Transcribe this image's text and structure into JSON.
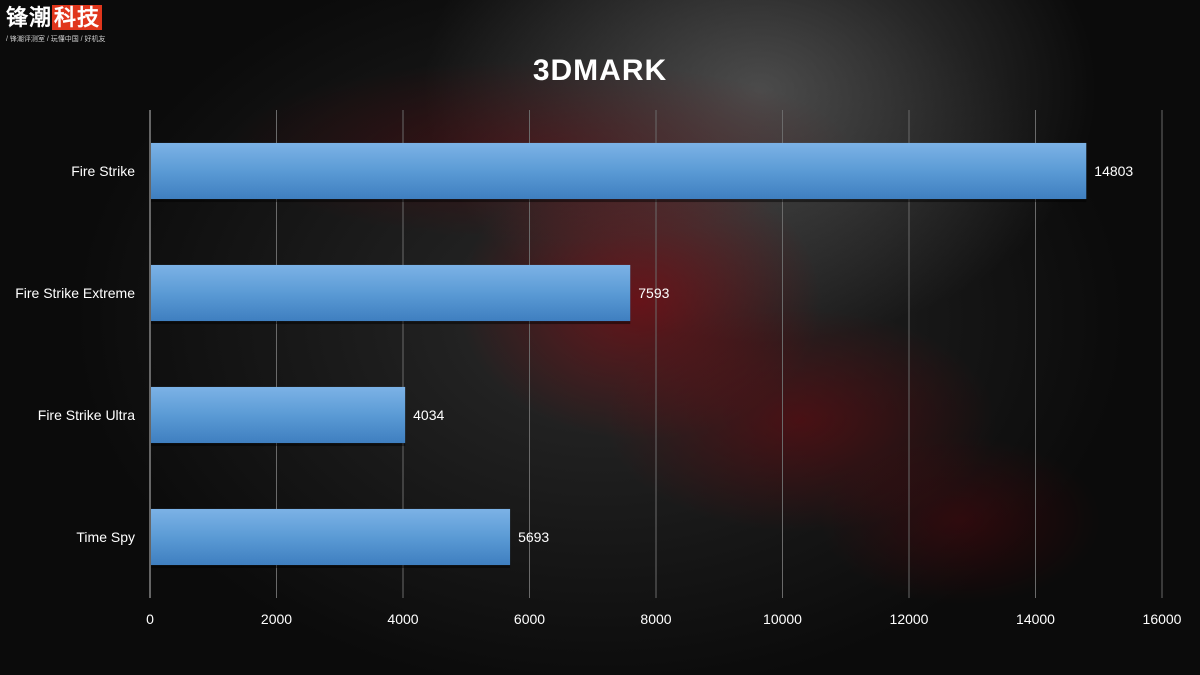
{
  "logo": {
    "title_part1": "锋潮",
    "title_part2": "科技",
    "subtitle": "/ 锋潮评测室 / 玩懂中国 / 好机友"
  },
  "chart_data": {
    "type": "bar",
    "orientation": "horizontal",
    "title": "3DMARK",
    "categories": [
      "Fire Strike",
      "Fire Strike Extreme",
      "Fire Strike Ultra",
      "Time Spy"
    ],
    "values": [
      14803,
      7593,
      4034,
      5693
    ],
    "xlim": [
      0,
      16000
    ],
    "xticks": [
      0,
      2000,
      4000,
      6000,
      8000,
      10000,
      12000,
      14000,
      16000
    ],
    "grid": true,
    "data_labels": true,
    "bar_color": "#5b9bd5",
    "xlabel": "",
    "ylabel": ""
  }
}
